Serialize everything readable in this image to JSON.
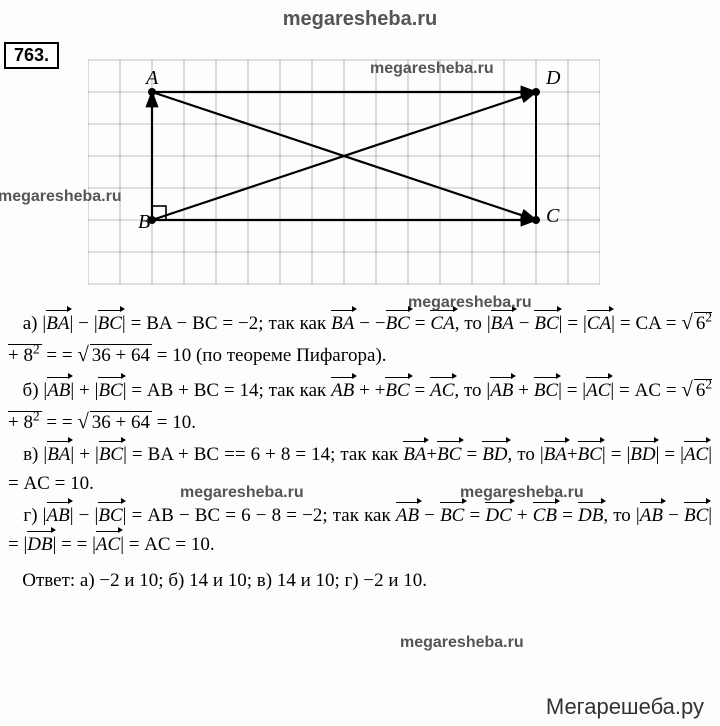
{
  "watermarks": {
    "top": "megaresheba.ru",
    "w1": "megaresheba.ru",
    "w2": "megaresheba.ru",
    "w3": "megaresheba.ru",
    "w4": "megaresheba.ru",
    "w5": "megaresheba.ru",
    "w6": "megaresheba.ru",
    "footer": "Мегарешеба.ру"
  },
  "problem_number": "763.",
  "diagram": {
    "grid": {
      "cols": 16,
      "rows": 7,
      "cell": 32,
      "stroke": "#888888"
    },
    "points": {
      "A": {
        "gx": 2,
        "gy": 1,
        "label": "A",
        "label_dx": -6,
        "label_dy": -8
      },
      "D": {
        "gx": 14,
        "gy": 1,
        "label": "D",
        "label_dx": 10,
        "label_dy": -8
      },
      "B": {
        "gx": 2,
        "gy": 5,
        "label": "B",
        "label_dx": -14,
        "label_dy": 8
      },
      "C": {
        "gx": 14,
        "gy": 5,
        "label": "C",
        "label_dx": 10,
        "label_dy": 2
      }
    },
    "rect_stroke": "#000000",
    "point_color": "#000000",
    "arrow_color": "#000000"
  },
  "solution": {
    "part_a_label": "а)",
    "part_b_label": "б)",
    "part_c_label": "в)",
    "part_d_label": "г)",
    "text": {
      "BA": "BA",
      "BC": "BC",
      "AB": "AB",
      "CA": "CA",
      "AC": "AC",
      "BD": "BD",
      "DC": "DC",
      "CB": "CB",
      "DB": "DB",
      "eq_a1": " − ",
      "eq_a2": " = BA − BC = −2;  так как ",
      "eq_a3": " − ",
      "eq_a4": " = ",
      "eq_a5": ", то |",
      "eq_a6": " − ",
      "eq_a7": "| = |",
      "eq_a8": "| = CA = ",
      "sqrt68": "6² + 8²",
      "eq_a9": " = ",
      "sqrt100": "36 + 64",
      "eq_a10": " = 10 (по теореме Пифагора).",
      "eq_b1": " + ",
      "eq_b2": " = AB + BC = 14;  так как ",
      "eq_b3": " + ",
      "eq_b4": " = ",
      "eq_b5": ", то |",
      "eq_b6": " + ",
      "eq_b7": "| = |",
      "eq_b8": "| = AC = ",
      "eq_b9": " = ",
      "eq_b10": " = 10.",
      "eq_c1": " + ",
      "eq_c2": " = BA + BC == 6 + 8 = 14;  так как ",
      "eq_c3": "+",
      "eq_c4": " = ",
      "eq_c5": ", то |",
      "eq_c6": "+",
      "eq_c7": "| = |",
      "eq_c8": "| = |",
      "eq_c9": "| = AC = 10.",
      "eq_d1": " − ",
      "eq_d2": " = AB − BC = 6 − 8 = −2;  так как ",
      "eq_d3": " − ",
      "eq_d4": " = ",
      "eq_d5": " + ",
      "eq_d6": " = ",
      "eq_d7": ", то |",
      "eq_d8": " − ",
      "eq_d9": "| = |",
      "eq_d10": "| = = |",
      "eq_d11": "| = AC = 10."
    },
    "answer_label": "Ответ: ",
    "answer_text": "а) −2 и 10; б) 14 и 10; в) 14 и 10; г) −2 и 10."
  }
}
